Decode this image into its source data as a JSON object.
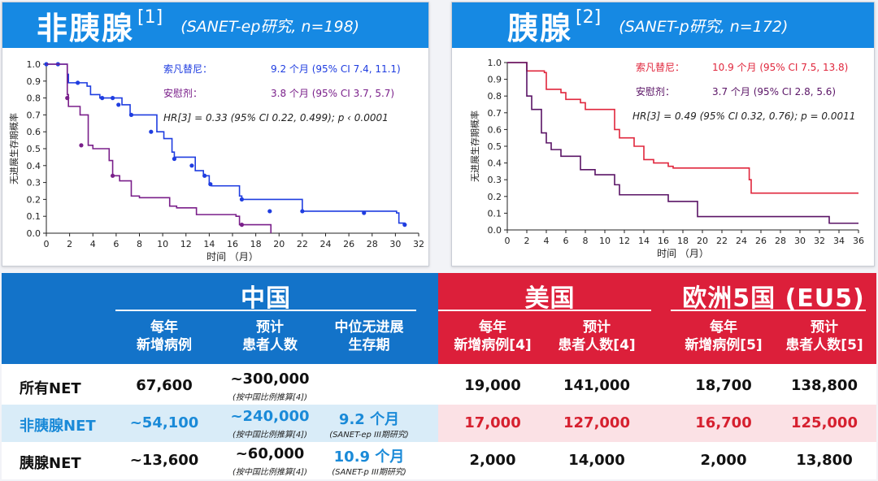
{
  "left_panel": {
    "title": "非胰腺",
    "ref": "[1]",
    "subtitle": "(SANET-ep研究, n=198)",
    "legend": {
      "drug1_label": "索凡替尼：",
      "drug1_value": "9.2 个月 (95% CI 7.4, 11.1)",
      "drug2_label": "安慰剂：",
      "drug2_value": "3.8 个月 (95% CI 3.7, 5.7)",
      "hr_text": "HR[3] = 0.33 (95% CI 0.22, 0.499); p ‹ 0.0001"
    }
  },
  "right_panel": {
    "title": "胰腺",
    "ref": "[2]",
    "subtitle": "(SANET-p研究, n=172)",
    "legend": {
      "drug1_label": "索凡替尼：",
      "drug1_value": "10.9 个月 (95% CI 7.5, 13.8)",
      "drug2_label": "安慰剂：",
      "drug2_value": "3.7 个月 (95% CI 2.8, 5.6)",
      "hr_text": "HR[3] = 0.49 (95% CI 0.32, 0.76); p = 0.0011"
    }
  },
  "colors": {
    "blue": "#1f3de0",
    "purple": "#7a1f8a",
    "red": "#e0263c",
    "dark_purple": "#5a1466"
  },
  "chart_data": [
    {
      "type": "line",
      "title": "非胰腺 [1] (SANET-ep研究, n=198)",
      "xlabel": "时间 （月）",
      "ylabel": "无进展生存期概率",
      "xlim": [
        0,
        32
      ],
      "ylim": [
        0,
        1.0
      ],
      "xticks": [
        0,
        2,
        4,
        6,
        8,
        10,
        12,
        14,
        16,
        18,
        20,
        22,
        24,
        26,
        28,
        30,
        32
      ],
      "yticks": [
        0.0,
        0.1,
        0.2,
        0.3,
        0.4,
        0.5,
        0.6,
        0.7,
        0.8,
        0.9,
        1.0
      ],
      "series": [
        {
          "name": "索凡替尼",
          "color": "blue",
          "step": [
            [
              0,
              1.0
            ],
            [
              1.7,
              1.0
            ],
            [
              1.8,
              0.94
            ],
            [
              1.9,
              0.89
            ],
            [
              3.5,
              0.87
            ],
            [
              3.8,
              0.82
            ],
            [
              4.6,
              0.8
            ],
            [
              6.5,
              0.76
            ],
            [
              7.2,
              0.7
            ],
            [
              9.5,
              0.6
            ],
            [
              10.1,
              0.56
            ],
            [
              10.8,
              0.48
            ],
            [
              11.0,
              0.45
            ],
            [
              12.8,
              0.37
            ],
            [
              13.5,
              0.34
            ],
            [
              14.0,
              0.29
            ],
            [
              14.2,
              0.28
            ],
            [
              16.6,
              0.22
            ],
            [
              16.8,
              0.2
            ],
            [
              22.0,
              0.13
            ],
            [
              30.1,
              0.12
            ],
            [
              30.3,
              0.06
            ],
            [
              30.8,
              0.05
            ]
          ],
          "censor": [
            [
              0,
              1.0
            ],
            [
              1.0,
              1.0
            ],
            [
              2.7,
              0.89
            ],
            [
              4.8,
              0.8
            ],
            [
              5.7,
              0.8
            ],
            [
              6.2,
              0.76
            ],
            [
              7.3,
              0.7
            ],
            [
              9.0,
              0.6
            ],
            [
              11.0,
              0.44
            ],
            [
              12.5,
              0.4
            ],
            [
              13.6,
              0.34
            ],
            [
              14.1,
              0.29
            ],
            [
              16.8,
              0.2
            ],
            [
              19.2,
              0.13
            ],
            [
              22.0,
              0.13
            ],
            [
              27.3,
              0.12
            ],
            [
              30.8,
              0.05
            ]
          ]
        },
        {
          "name": "安慰剂",
          "color": "purple",
          "step": [
            [
              0,
              1.0
            ],
            [
              1.8,
              1.0
            ],
            [
              1.8,
              0.82
            ],
            [
              1.9,
              0.75
            ],
            [
              2.9,
              0.7
            ],
            [
              3.6,
              0.52
            ],
            [
              4.0,
              0.5
            ],
            [
              5.4,
              0.43
            ],
            [
              5.7,
              0.34
            ],
            [
              6.3,
              0.31
            ],
            [
              7.3,
              0.22
            ],
            [
              8.0,
              0.21
            ],
            [
              10.6,
              0.16
            ],
            [
              11.2,
              0.15
            ],
            [
              12.9,
              0.11
            ],
            [
              16.3,
              0.1
            ],
            [
              16.6,
              0.05
            ],
            [
              19.2,
              0.05
            ],
            [
              19.3,
              0.0
            ]
          ],
          "censor": [
            [
              1.8,
              0.8
            ],
            [
              3.0,
              0.52
            ],
            [
              5.7,
              0.34
            ],
            [
              16.8,
              0.05
            ]
          ]
        }
      ]
    },
    {
      "type": "line",
      "title": "胰腺 [2] (SANET-p研究, n=172)",
      "xlabel": "时间 （月）",
      "ylabel": "无进展生存期概率",
      "xlim": [
        0,
        36
      ],
      "ylim": [
        0,
        1.0
      ],
      "xticks": [
        0,
        2,
        4,
        6,
        8,
        10,
        12,
        14,
        16,
        18,
        20,
        22,
        24,
        26,
        28,
        30,
        32,
        34,
        36
      ],
      "yticks": [
        0.0,
        0.1,
        0.2,
        0.3,
        0.4,
        0.5,
        0.6,
        0.7,
        0.8,
        0.9,
        1.0
      ],
      "series": [
        {
          "name": "索凡替尼",
          "color": "red",
          "step": [
            [
              0,
              1.0
            ],
            [
              2.0,
              1.0
            ],
            [
              2.0,
              0.95
            ],
            [
              3.8,
              0.94
            ],
            [
              4.0,
              0.84
            ],
            [
              5.5,
              0.82
            ],
            [
              6.0,
              0.78
            ],
            [
              7.5,
              0.76
            ],
            [
              8.0,
              0.72
            ],
            [
              11.0,
              0.6
            ],
            [
              11.5,
              0.55
            ],
            [
              13.0,
              0.5
            ],
            [
              14.0,
              0.42
            ],
            [
              15.0,
              0.4
            ],
            [
              16.5,
              0.38
            ],
            [
              17.0,
              0.37
            ],
            [
              24.8,
              0.3
            ],
            [
              25.0,
              0.22
            ],
            [
              36.0,
              0.22
            ]
          ],
          "censor": []
        },
        {
          "name": "安慰剂",
          "color": "dark_purple",
          "step": [
            [
              0,
              1.0
            ],
            [
              1.8,
              1.0
            ],
            [
              2.0,
              0.8
            ],
            [
              2.5,
              0.72
            ],
            [
              3.5,
              0.58
            ],
            [
              4.0,
              0.52
            ],
            [
              4.5,
              0.48
            ],
            [
              5.5,
              0.44
            ],
            [
              7.5,
              0.36
            ],
            [
              9.0,
              0.33
            ],
            [
              11.0,
              0.27
            ],
            [
              11.5,
              0.21
            ],
            [
              16.5,
              0.17
            ],
            [
              19.5,
              0.08
            ],
            [
              33.0,
              0.04
            ],
            [
              36.0,
              0.04
            ]
          ],
          "censor": []
        }
      ]
    }
  ],
  "table": {
    "china": "中国",
    "us": "美国",
    "eu": "欧洲5国 (EU5)",
    "cols": {
      "cn_incidence": [
        "每年",
        "新增病例"
      ],
      "cn_prevalence": [
        "预计",
        "患者人数"
      ],
      "cn_pfs": [
        "中位无进展",
        "生存期"
      ],
      "us_incidence": [
        "每年",
        "新增病例[4]"
      ],
      "us_prevalence": [
        "预计",
        "患者人数[4]"
      ],
      "eu_incidence": [
        "每年",
        "新增病例[5]"
      ],
      "eu_prevalence": [
        "预计",
        "患者人数[5]"
      ]
    },
    "rows": [
      {
        "label": "所有NET",
        "cn_inc": "67,600",
        "cn_prev": "~300,000",
        "cn_prev_note": "(按中国比例推算[4])",
        "pfs": "",
        "pfs_note": "",
        "us_inc": "19,000",
        "us_prev": "141,000",
        "eu_inc": "18,700",
        "eu_prev": "138,800"
      },
      {
        "label": "非胰腺NET",
        "cn_inc": "~54,100",
        "cn_prev": "~240,000",
        "cn_prev_note": "(按中国比例推算[4])",
        "pfs": "9.2 个月",
        "pfs_note": "(SANET-ep III期研究)",
        "us_inc": "17,000",
        "us_prev": "127,000",
        "eu_inc": "16,700",
        "eu_prev": "125,000"
      },
      {
        "label": "胰腺NET",
        "cn_inc": "~13,600",
        "cn_prev": "~60,000",
        "cn_prev_note": "(按中国比例推算[4])",
        "pfs": "10.9 个月",
        "pfs_note": "(SANET-p III期研究)",
        "us_inc": "2,000",
        "us_prev": "14,000",
        "eu_inc": "2,000",
        "eu_prev": "13,800"
      }
    ]
  }
}
